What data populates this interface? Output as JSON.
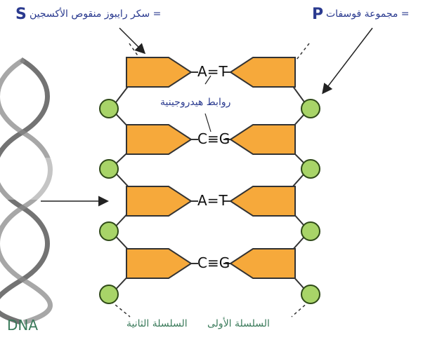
{
  "labels": {
    "sugar_letter": "S",
    "sugar_text": "سكر رايبوز منقوص الأكسجين =",
    "phosphate_letter": "P",
    "phosphate_text": "مجموعة فوسفات =",
    "hydrogen_bonds": "روابط هيدروجينية",
    "dna": "DNA",
    "strand_one": "السلسلة الأولى",
    "strand_two": "السلسلة الثانية"
  },
  "base_pairs": [
    {
      "left": "A",
      "bond": "=",
      "right": "T"
    },
    {
      "left": "C",
      "bond": "≡",
      "right": "G"
    },
    {
      "left": "A",
      "bond": "=",
      "right": "T"
    },
    {
      "left": "C",
      "bond": "≡",
      "right": "G"
    }
  ],
  "colors": {
    "sugar_fill": "#f6a93b",
    "sugar_stroke": "#333333",
    "phosphate_fill": "#a8d468",
    "phosphate_stroke": "#2f4a18",
    "label_blue": "#2a3a8f",
    "label_green": "#3a7a5a"
  }
}
